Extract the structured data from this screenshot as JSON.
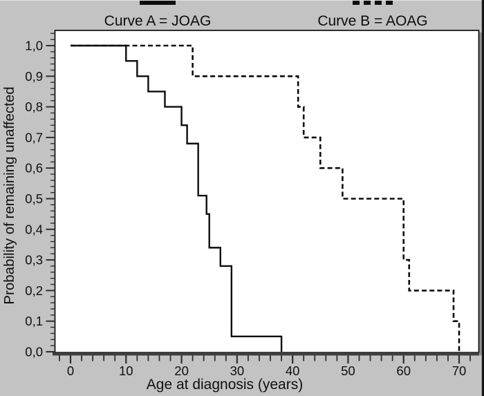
{
  "colors": {
    "background": "#c3c3c3",
    "plot_fill": "#ffffff",
    "frame_stroke": "#000000",
    "curve": "#0b0b0b",
    "axis_band": "#3e3e3e",
    "tick": "#2e2e2e",
    "label": "#101010",
    "shadow": "#8f8f8f",
    "edge_strip": "#151515"
  },
  "legend": {
    "items": [
      {
        "label": "Curve A = JOAG",
        "style": "solid"
      },
      {
        "label": "Curve B = AOAG",
        "style": "dashed"
      }
    ]
  },
  "chart_data": {
    "type": "line",
    "subtype": "kaplan-meier-step",
    "title": "",
    "xlabel": "Age at diagnosis (years)",
    "ylabel": "Probability of remaining unaffected",
    "xlim": [
      -2.7,
      73.5
    ],
    "ylim": [
      0,
      1.05
    ],
    "grid": false,
    "legend_position": "top",
    "decimal_separator": "comma",
    "x_major_ticks": [
      0,
      10,
      20,
      30,
      40,
      50,
      60,
      70
    ],
    "x_minor_step": 2,
    "y_major_ticks": [
      0,
      0.1,
      0.2,
      0.3,
      0.4,
      0.5,
      0.6,
      0.7,
      0.8,
      0.9,
      1.0
    ],
    "y_tick_labels": [
      "0,0",
      "0,1",
      "0,2",
      "0,3",
      "0,4",
      "0,5",
      "0,6",
      "0,7",
      "0,8",
      "0,9",
      "1,0"
    ],
    "y_minor_step": 0.02,
    "series": [
      {
        "name": "Curve A = JOAG",
        "dash": "solid",
        "points": [
          [
            0,
            1.0
          ],
          [
            10,
            0.95
          ],
          [
            12,
            0.9
          ],
          [
            14,
            0.85
          ],
          [
            17,
            0.8
          ],
          [
            20,
            0.74
          ],
          [
            21,
            0.68
          ],
          [
            23,
            0.51
          ],
          [
            24.5,
            0.45
          ],
          [
            25,
            0.34
          ],
          [
            27,
            0.28
          ],
          [
            29,
            0.05
          ],
          [
            38,
            0.0
          ]
        ]
      },
      {
        "name": "Curve B = AOAG",
        "dash": "dashed",
        "points": [
          [
            0,
            1.0
          ],
          [
            22,
            0.9
          ],
          [
            41,
            0.8
          ],
          [
            42,
            0.7
          ],
          [
            45,
            0.6
          ],
          [
            49,
            0.5
          ],
          [
            60,
            0.3
          ],
          [
            61,
            0.2
          ],
          [
            69,
            0.1
          ],
          [
            70,
            0.0
          ]
        ]
      }
    ]
  }
}
